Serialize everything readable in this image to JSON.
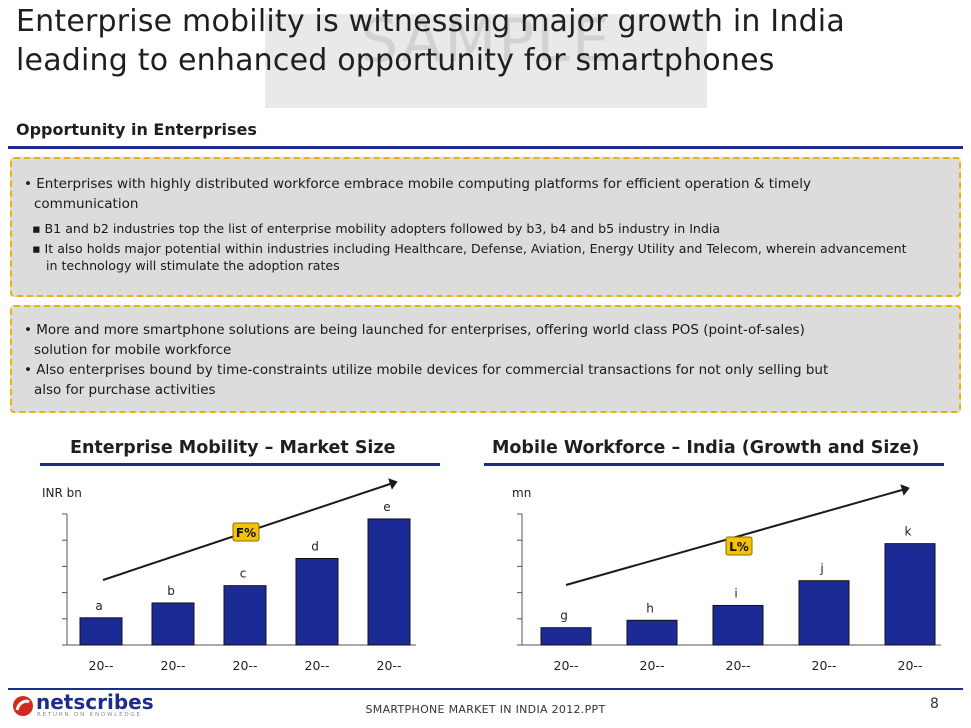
{
  "slide": {
    "title_lines": [
      "Enterprise mobility is witnessing major growth in India",
      "leading to enhanced opportunity for smartphones"
    ],
    "watermark": "SAMPLE",
    "section_heading": "Opportunity in Enterprises"
  },
  "box1": {
    "bullet": "Enterprises with highly distributed workforce embrace mobile computing platforms for efficient operation & timely communication",
    "bullet_lines": [
      "Enterprises with highly distributed workforce embrace mobile computing platforms for efficient operation & timely",
      "communication"
    ],
    "sub_bullets": [
      {
        "lines": [
          "B1 and b2 industries top the list of enterprise mobility adopters followed by b3, b4 and b5 industry in India"
        ]
      },
      {
        "lines": [
          "It also holds major potential within industries including Healthcare, Defense, Aviation, Energy Utility and Telecom, wherein advancement",
          "in technology will stimulate the adoption rates"
        ]
      }
    ]
  },
  "box2": {
    "bullets": [
      {
        "lines": [
          "More and more smartphone solutions are being launched for enterprises, offering world class POS (point-of-sales)",
          "solution for mobile workforce"
        ]
      },
      {
        "lines": [
          "Also enterprises bound by time-constraints utilize mobile devices for commercial transactions for not only selling but",
          "also for purchase activities"
        ]
      }
    ]
  },
  "chart_data": [
    {
      "type": "bar",
      "title": "Enterprise Mobility – Market Size",
      "ylabel": "INR bn",
      "categories": [
        "20--",
        "20--",
        "20--",
        "20--",
        "20--"
      ],
      "values": [
        1.1,
        1.7,
        2.4,
        3.5,
        5.1
      ],
      "data_labels": [
        "a",
        "b",
        "c",
        "d",
        "e"
      ],
      "ylim": [
        0,
        5.3
      ],
      "trend_label": "F%",
      "bar_color": "#1c2a96",
      "grid": false
    },
    {
      "type": "bar",
      "title": "Mobile Workforce – India (Growth and Size)",
      "ylabel": "mn",
      "categories": [
        "20--",
        "20--",
        "20--",
        "20--",
        "20--"
      ],
      "values": [
        0.7,
        1.0,
        1.6,
        2.6,
        4.1
      ],
      "data_labels": [
        "g",
        "h",
        "i",
        "j",
        "k"
      ],
      "ylim": [
        0,
        5.3
      ],
      "trend_label": "L%",
      "bar_color": "#1c2a96",
      "grid": false
    }
  ],
  "footer": {
    "brand": "netscribes",
    "tagline": "RETURN ON KNOWLEDGE",
    "file": "SMARTPHONE MARKET IN INDIA 2012.PPT",
    "page": "8"
  },
  "colors": {
    "accent_navy": "#1f2d8a",
    "box_border": "#e8b400",
    "box_fill": "#dcdcdc",
    "badge_fill": "#f5c200"
  }
}
